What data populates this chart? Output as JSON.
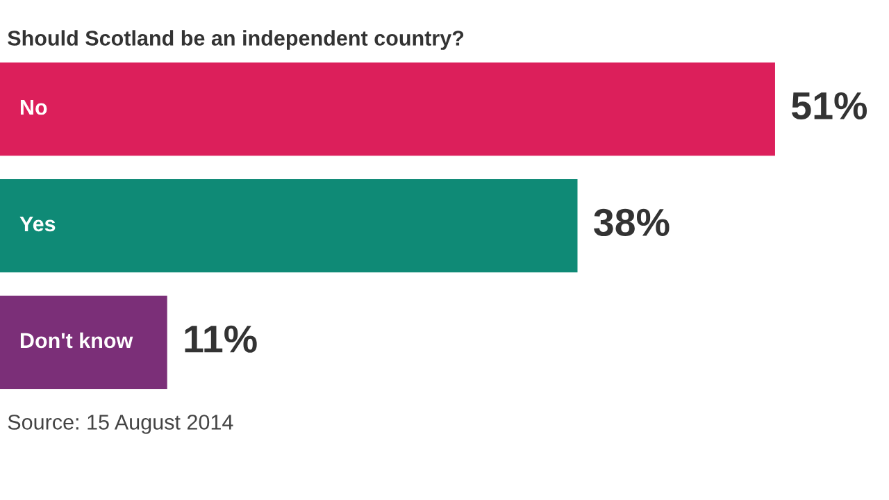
{
  "chart_data": {
    "type": "bar",
    "orientation": "horizontal",
    "title": "Should Scotland be an independent country?",
    "categories": [
      "No",
      "Yes",
      "Don't know"
    ],
    "values": [
      51,
      38,
      11
    ],
    "colors": [
      "#dc1f5b",
      "#0f8a76",
      "#7b2f78"
    ],
    "value_labels": [
      "51%",
      "38%",
      "11%"
    ],
    "annotations": [
      "Source: 15 August 2014"
    ]
  }
}
